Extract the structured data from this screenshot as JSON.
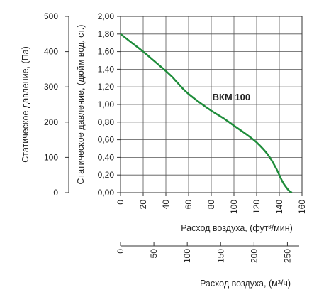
{
  "chart_data": {
    "type": "line",
    "series": [
      {
        "name": "ВКМ 100",
        "color": "#1e8c3a",
        "x": [
          0,
          10,
          20,
          30,
          40,
          45,
          50,
          55,
          60,
          70,
          80,
          90,
          100,
          110,
          120,
          130,
          137,
          143,
          148,
          151
        ],
        "y": [
          1.8,
          1.7,
          1.6,
          1.49,
          1.38,
          1.32,
          1.25,
          1.18,
          1.12,
          1.02,
          0.93,
          0.85,
          0.76,
          0.67,
          0.57,
          0.43,
          0.28,
          0.12,
          0.03,
          0.0
        ]
      }
    ],
    "series_label": "ВКМ 100",
    "xlabel_fpm": "Расход воздуха, (фут³/мин)",
    "xlabel_m3h": "Расход воздуха, (м³/ч)",
    "ylabel_pa": "Статическое давление, (Па)",
    "ylabel_in": "Статическое давление, (дюйм вод. ст.)",
    "x_ticks": [
      "0",
      "20",
      "40",
      "60",
      "80",
      "100",
      "120",
      "140",
      "160"
    ],
    "x_ticks_m3h": [
      "0",
      "50",
      "100",
      "150",
      "200",
      "250"
    ],
    "y_ticks_in": [
      "0,00",
      "0,20",
      "0,40",
      "0,60",
      "0,80",
      "1,00",
      "1,20",
      "1,40",
      "1,60",
      "1,80",
      "2,00"
    ],
    "y_ticks_pa": [
      "0",
      "100",
      "200",
      "300",
      "400",
      "500"
    ],
    "xlim": [
      0,
      160
    ],
    "ylim": [
      0,
      2.0
    ],
    "xlim_m3h": [
      0,
      271.84
    ],
    "ylim_pa": [
      0,
      500
    ],
    "grid": true
  }
}
